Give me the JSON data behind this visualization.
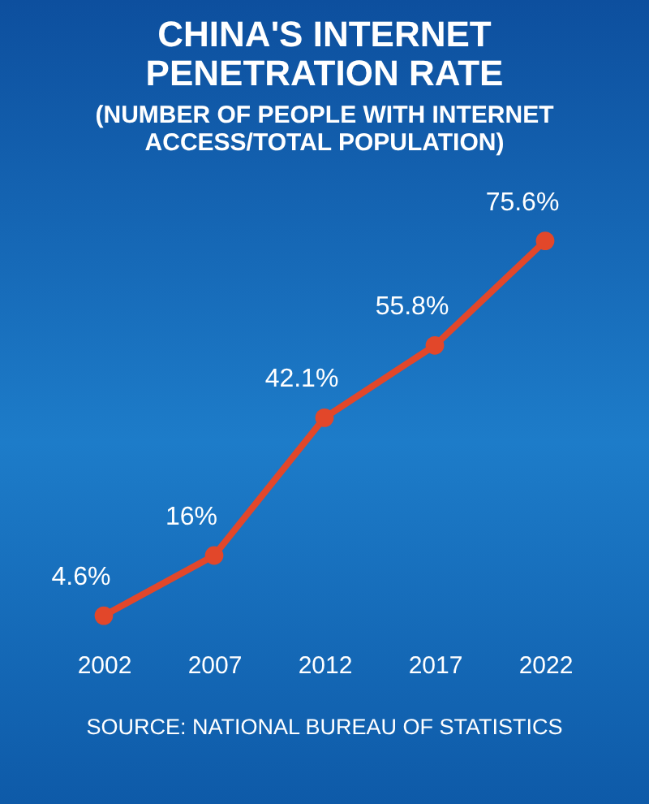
{
  "chart_data": {
    "type": "line",
    "title": "CHINA'S   INTERNET\nPENETRATION RATE",
    "subtitle": "(NUMBER OF PEOPLE WITH INTERNET\nACCESS/TOTAL POPULATION)",
    "categories": [
      "2002",
      "2007",
      "2012",
      "2017",
      "2022"
    ],
    "series": [
      {
        "color": "#e2472a",
        "values": [
          4.6,
          16,
          42.1,
          55.8,
          75.6
        ],
        "value_labels": [
          "4.6%",
          "16%",
          "42.1%",
          "55.8%",
          "75.6%"
        ]
      }
    ],
    "marker": "circle",
    "annotations": [
      "SOURCE: NATIONAL BUREAU OF STATISTICS"
    ]
  }
}
